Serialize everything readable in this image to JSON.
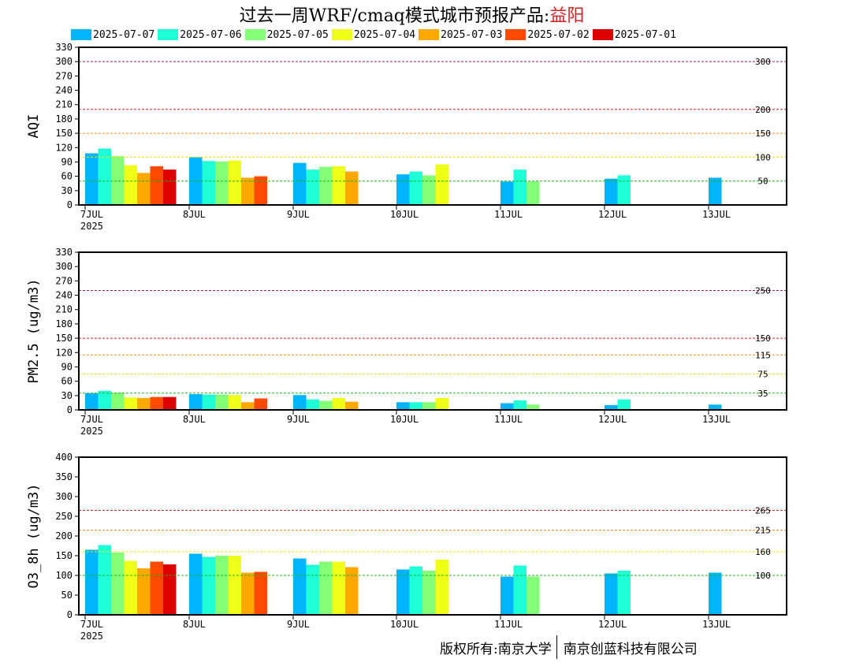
{
  "title_prefix": "过去一周WRF/cmaq模式城市预报产品:",
  "city": "益阳",
  "footer": {
    "left": "版权所有:南京大学",
    "right": "南京创蓝科技有限公司"
  },
  "colors": {
    "2025-07-07": "#00b4ff",
    "2025-07-06": "#1effd8",
    "2025-07-05": "#84ff78",
    "2025-07-04": "#f0ff16",
    "2025-07-03": "#ffa800",
    "2025-07-02": "#ff4a00",
    "2025-07-01": "#dc0000"
  },
  "chart_data": [
    {
      "type": "bar",
      "ylabel": "AQI",
      "ylim": [
        0,
        330
      ],
      "yticks": [
        0,
        30,
        60,
        90,
        120,
        150,
        180,
        210,
        240,
        270,
        300,
        330
      ],
      "categories": [
        "7JUL",
        "8JUL",
        "9JUL",
        "10JUL",
        "11JUL",
        "12JUL",
        "13JUL"
      ],
      "year_label": "2025",
      "thresholds": [
        {
          "value": 300,
          "label": "300",
          "color": "#a0205a"
        },
        {
          "value": 200,
          "label": "200",
          "color": "#d62020"
        },
        {
          "value": 150,
          "label": "150",
          "color": "#ff8c1a"
        },
        {
          "value": 100,
          "label": "100",
          "color": "#f0e000"
        },
        {
          "value": 50,
          "label": "50",
          "color": "#18b818"
        }
      ],
      "series": [
        {
          "name": "2025-07-07",
          "values": [
            108,
            100,
            88,
            64,
            49,
            55,
            57
          ]
        },
        {
          "name": "2025-07-06",
          "values": [
            118,
            92,
            74,
            70,
            74,
            62,
            null
          ]
        },
        {
          "name": "2025-07-05",
          "values": [
            102,
            91,
            80,
            62,
            49,
            null,
            null
          ]
        },
        {
          "name": "2025-07-04",
          "values": [
            83,
            93,
            81,
            85,
            null,
            null,
            null
          ]
        },
        {
          "name": "2025-07-03",
          "values": [
            67,
            57,
            70,
            null,
            null,
            null,
            null
          ]
        },
        {
          "name": "2025-07-02",
          "values": [
            81,
            60,
            null,
            null,
            null,
            null,
            null
          ]
        },
        {
          "name": "2025-07-01",
          "values": [
            74,
            null,
            null,
            null,
            null,
            null,
            null
          ]
        }
      ]
    },
    {
      "type": "bar",
      "ylabel": "PM2.5 (ug/m3)",
      "ylim": [
        0,
        330
      ],
      "yticks": [
        0,
        30,
        60,
        90,
        120,
        150,
        180,
        210,
        240,
        270,
        300,
        330
      ],
      "categories": [
        "7JUL",
        "8JUL",
        "9JUL",
        "10JUL",
        "11JUL",
        "12JUL",
        "13JUL"
      ],
      "year_label": "2025",
      "thresholds": [
        {
          "value": 250,
          "label": "250",
          "color": "#a0205a"
        },
        {
          "value": 150,
          "label": "150",
          "color": "#d62020"
        },
        {
          "value": 115,
          "label": "115",
          "color": "#ff8c1a"
        },
        {
          "value": 75,
          "label": "75",
          "color": "#f0e000"
        },
        {
          "value": 35,
          "label": "35",
          "color": "#18b818"
        }
      ],
      "series": [
        {
          "name": "2025-07-07",
          "values": [
            35,
            33,
            31,
            16,
            14,
            10,
            11
          ]
        },
        {
          "name": "2025-07-06",
          "values": [
            40,
            32,
            22,
            16,
            20,
            22,
            null
          ]
        },
        {
          "name": "2025-07-05",
          "values": [
            36,
            32,
            19,
            16,
            11,
            null,
            null
          ]
        },
        {
          "name": "2025-07-04",
          "values": [
            26,
            31,
            25,
            25,
            null,
            null,
            null
          ]
        },
        {
          "name": "2025-07-03",
          "values": [
            25,
            16,
            17,
            null,
            null,
            null,
            null
          ]
        },
        {
          "name": "2025-07-02",
          "values": [
            27,
            24,
            null,
            null,
            null,
            null,
            null
          ]
        },
        {
          "name": "2025-07-01",
          "values": [
            27,
            null,
            null,
            null,
            null,
            null,
            null
          ]
        }
      ]
    },
    {
      "type": "bar",
      "ylabel": "O3_8h (ug/m3)",
      "ylim": [
        0,
        400
      ],
      "yticks": [
        0,
        50,
        100,
        150,
        200,
        250,
        300,
        350,
        400
      ],
      "categories": [
        "7JUL",
        "8JUL",
        "9JUL",
        "10JUL",
        "11JUL",
        "12JUL",
        "13JUL"
      ],
      "year_label": "2025",
      "thresholds": [
        {
          "value": 265,
          "label": "265",
          "color": "#d62020"
        },
        {
          "value": 215,
          "label": "215",
          "color": "#ff8c1a"
        },
        {
          "value": 160,
          "label": "160",
          "color": "#f0e000"
        },
        {
          "value": 100,
          "label": "100",
          "color": "#18b818"
        }
      ],
      "series": [
        {
          "name": "2025-07-07",
          "values": [
            165,
            155,
            143,
            115,
            97,
            105,
            107
          ]
        },
        {
          "name": "2025-07-06",
          "values": [
            177,
            147,
            127,
            123,
            125,
            112,
            null
          ]
        },
        {
          "name": "2025-07-05",
          "values": [
            158,
            150,
            135,
            112,
            97,
            null,
            null
          ]
        },
        {
          "name": "2025-07-04",
          "values": [
            137,
            150,
            135,
            140,
            null,
            null,
            null
          ]
        },
        {
          "name": "2025-07-03",
          "values": [
            118,
            107,
            121,
            null,
            null,
            null,
            null
          ]
        },
        {
          "name": "2025-07-02",
          "values": [
            135,
            109,
            null,
            null,
            null,
            null,
            null
          ]
        },
        {
          "name": "2025-07-01",
          "values": [
            128,
            null,
            null,
            null,
            null,
            null,
            null
          ]
        }
      ]
    }
  ]
}
